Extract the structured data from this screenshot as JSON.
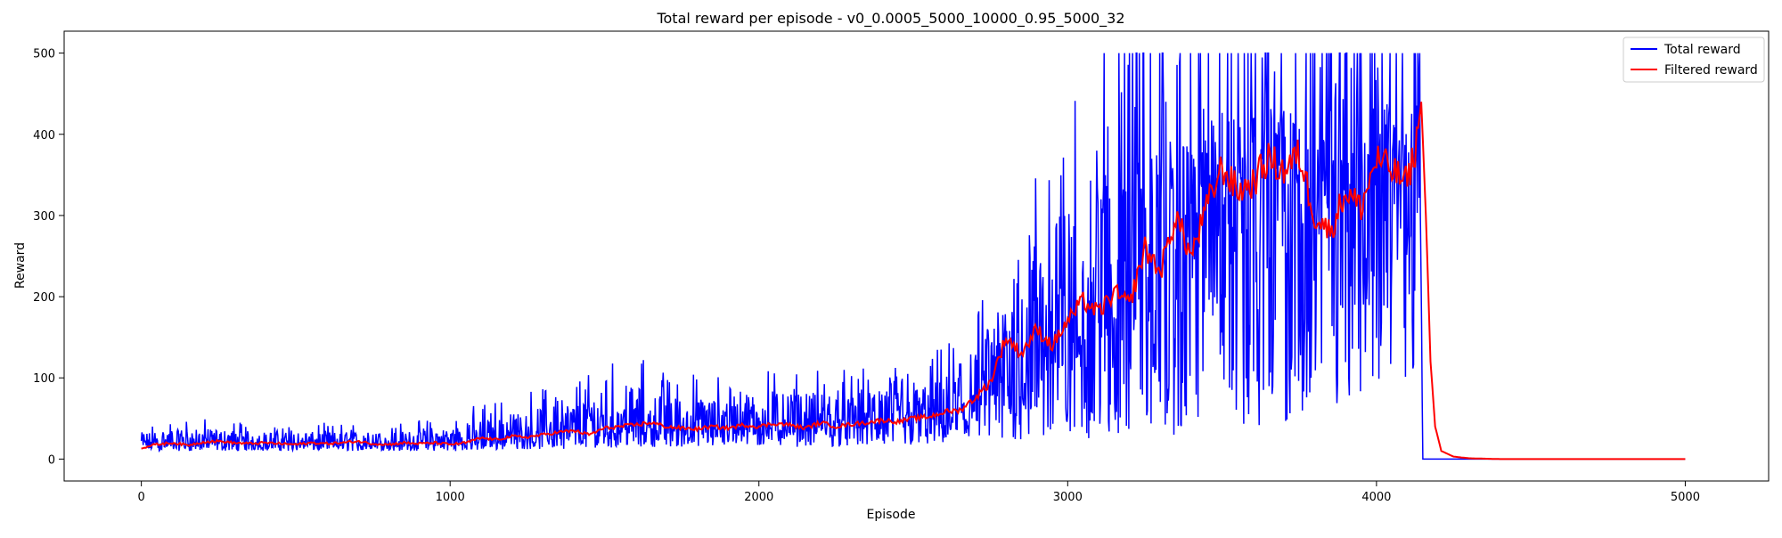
{
  "chart_data": {
    "type": "line",
    "title": "Total reward per episode - v0_0.0005_5000_10000_0.95_5000_32",
    "xlabel": "Episode",
    "ylabel": "Reward",
    "xlim": [
      -250,
      5270
    ],
    "ylim": [
      -27,
      527
    ],
    "xticks": [
      0,
      1000,
      2000,
      3000,
      4000,
      5000
    ],
    "yticks": [
      0,
      100,
      200,
      300,
      400,
      500
    ],
    "legend_position": "top-right",
    "series": [
      {
        "name": "Total reward",
        "color": "#0000ff",
        "style": "noisy",
        "x": [
          0,
          100,
          200,
          300,
          400,
          500,
          600,
          700,
          800,
          900,
          1000,
          1100,
          1200,
          1300,
          1400,
          1500,
          1600,
          1700,
          1800,
          1900,
          2000,
          2100,
          2200,
          2300,
          2400,
          2500,
          2600,
          2700,
          2800,
          2900,
          3000,
          3100,
          3200,
          3300,
          3400,
          3500,
          3600,
          3700,
          3800,
          3900,
          4000,
          4050,
          4100,
          4140,
          4150,
          4200,
          4300,
          4500,
          5000
        ],
        "low": [
          10,
          10,
          10,
          10,
          10,
          10,
          10,
          10,
          10,
          10,
          10,
          10,
          12,
          12,
          13,
          14,
          15,
          15,
          14,
          15,
          15,
          15,
          15,
          15,
          15,
          15,
          16,
          16,
          18,
          20,
          22,
          24,
          25,
          28,
          30,
          35,
          40,
          45,
          50,
          60,
          70,
          80,
          90,
          100,
          0,
          0,
          0,
          0,
          0
        ],
        "mid": [
          18,
          20,
          20,
          20,
          19,
          19,
          19,
          19,
          19,
          19,
          20,
          24,
          27,
          31,
          34,
          37,
          40,
          38,
          38,
          40,
          42,
          42,
          42,
          44,
          46,
          48,
          54,
          62,
          95,
          135,
          150,
          175,
          190,
          235,
          260,
          330,
          340,
          355,
          300,
          320,
          370,
          360,
          340,
          390,
          0,
          0,
          0,
          0,
          0
        ],
        "high": [
          45,
          50,
          50,
          48,
          45,
          45,
          45,
          45,
          45,
          48,
          55,
          70,
          80,
          90,
          100,
          120,
          130,
          110,
          105,
          110,
          115,
          110,
          115,
          110,
          115,
          120,
          140,
          180,
          260,
          380,
          450,
          500,
          500,
          500,
          500,
          500,
          500,
          500,
          500,
          500,
          500,
          500,
          500,
          500,
          0,
          0,
          0,
          0,
          0
        ]
      },
      {
        "name": "Filtered reward",
        "color": "#ff0000",
        "x": [
          0,
          50,
          100,
          150,
          200,
          250,
          300,
          350,
          400,
          450,
          500,
          550,
          600,
          650,
          700,
          750,
          800,
          850,
          900,
          950,
          1000,
          1050,
          1100,
          1150,
          1200,
          1250,
          1300,
          1350,
          1400,
          1450,
          1500,
          1550,
          1600,
          1650,
          1700,
          1750,
          1800,
          1850,
          1900,
          1950,
          2000,
          2050,
          2100,
          2150,
          2200,
          2250,
          2300,
          2350,
          2400,
          2450,
          2500,
          2550,
          2600,
          2650,
          2700,
          2750,
          2800,
          2850,
          2900,
          2950,
          3000,
          3050,
          3100,
          3150,
          3200,
          3250,
          3300,
          3350,
          3400,
          3450,
          3500,
          3550,
          3600,
          3650,
          3700,
          3750,
          3800,
          3850,
          3900,
          3950,
          4000,
          4050,
          4100,
          4130,
          4145,
          4160,
          4175,
          4190,
          4210,
          4250,
          4300,
          4400,
          5000
        ],
        "y": [
          14,
          18,
          20,
          17,
          21,
          22,
          20,
          19,
          20,
          19,
          18,
          20,
          19,
          20,
          22,
          19,
          18,
          20,
          19,
          20,
          18,
          20,
          26,
          24,
          28,
          27,
          30,
          33,
          35,
          30,
          38,
          40,
          42,
          45,
          40,
          38,
          37,
          40,
          38,
          42,
          40,
          44,
          42,
          38,
          45,
          40,
          43,
          45,
          48,
          46,
          50,
          52,
          58,
          60,
          75,
          95,
          150,
          130,
          160,
          140,
          170,
          195,
          180,
          205,
          190,
          260,
          230,
          300,
          250,
          310,
          360,
          330,
          340,
          370,
          355,
          375,
          300,
          280,
          330,
          310,
          370,
          355,
          340,
          390,
          440,
          300,
          120,
          40,
          10,
          3,
          1,
          0,
          0
        ]
      }
    ]
  }
}
